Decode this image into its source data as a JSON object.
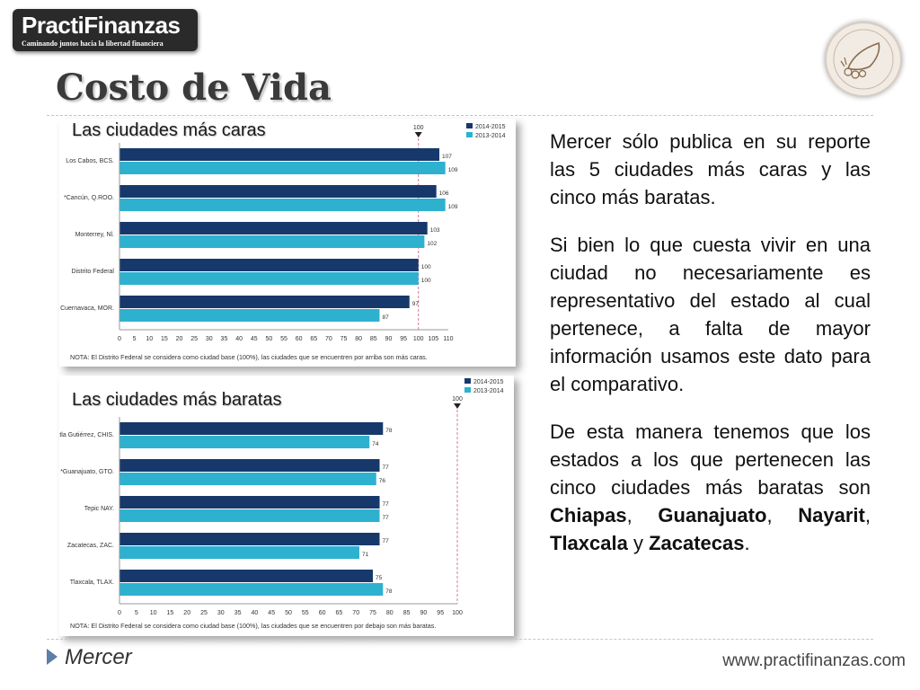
{
  "logo": {
    "name": "PractiFinanzas",
    "tagline": "Caminando juntos hacia la libertad financiera"
  },
  "slide_title": "Costo de Vida",
  "charts": {
    "caras_caption": "Las ciudades más caras",
    "baratas_caption": "Las ciudades más baratas"
  },
  "body": {
    "p1": "Mercer sólo publica en su reporte las 5 ciudades más caras y las cinco más baratas.",
    "p2": "Si bien lo que cuesta vivir en una ciudad no necesariamente es representativo del estado al cual pertenece, a falta de mayor información usamos este dato para el comparativo.",
    "p3_intro": "De esta manera tenemos que los estados a los que pertenecen las cinco ciudades más baratas son ",
    "states": [
      "Chiapas",
      "Guanajuato",
      "Nayarit",
      "Tlaxcala",
      "Zacatecas"
    ],
    "sep_comma": ", ",
    "sep_y": " y ",
    "end": "."
  },
  "footer": {
    "source": "Mercer",
    "website": "www.practifinanzas.com"
  },
  "chart_data": [
    {
      "type": "bar",
      "orientation": "horizontal",
      "categories": [
        "Los Cabos, BCS.",
        "*Cancún, Q.ROO.",
        "Monterrey, Nl.",
        "Distrito Federal",
        "Cuernavaca, MOR."
      ],
      "series": [
        {
          "name": "2014-2015",
          "color": "#17386b",
          "values": [
            107,
            106,
            103,
            100,
            97
          ]
        },
        {
          "name": "2013-2014",
          "color": "#2eb1cf",
          "values": [
            109,
            109,
            102,
            100,
            87
          ]
        }
      ],
      "xlim": [
        0,
        110
      ],
      "xticks": [
        0,
        5,
        10,
        15,
        20,
        25,
        30,
        35,
        40,
        45,
        50,
        55,
        60,
        65,
        70,
        75,
        80,
        85,
        90,
        95,
        100,
        105,
        110
      ],
      "reference_line": 100,
      "reference_label": "100",
      "legend_position": "top-right",
      "note": "NOTA: El Distrito Federal se considera como ciudad base (100%), las ciudades que se encuentren por arriba son más caras."
    },
    {
      "type": "bar",
      "orientation": "horizontal",
      "categories": [
        "Tuxtla Gutiérrez, CHIS.",
        "*Guanajuato, GTO.",
        "Tepic NAY.",
        "Zacatecas, ZAC.",
        "Tlaxcala, TLAX."
      ],
      "series": [
        {
          "name": "2014-2015",
          "color": "#17386b",
          "values": [
            78,
            77,
            77,
            77,
            75
          ]
        },
        {
          "name": "2013-2014",
          "color": "#2eb1cf",
          "values": [
            74,
            76,
            77,
            71,
            78
          ]
        }
      ],
      "xlim": [
        0,
        100
      ],
      "xticks": [
        0,
        5,
        10,
        15,
        20,
        25,
        30,
        35,
        40,
        45,
        50,
        55,
        60,
        65,
        70,
        75,
        80,
        85,
        90,
        95,
        100
      ],
      "reference_line": 100,
      "reference_label": "100",
      "legend_position": "top-right",
      "note": "NOTA: El Distrito Federal se considera como ciudad base (100%), las ciudades que se encuentren por debajo son más baratas."
    }
  ]
}
